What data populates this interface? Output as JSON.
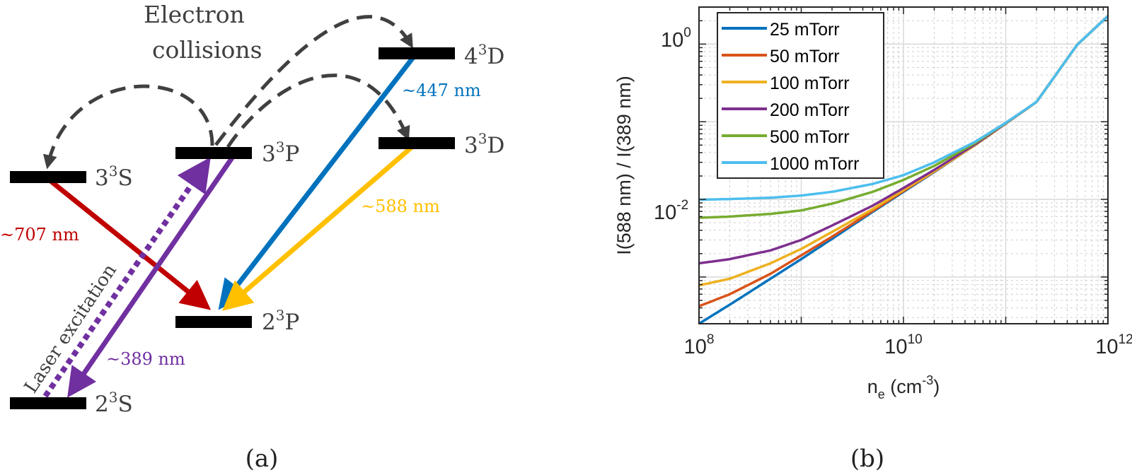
{
  "diagram": {
    "electron_collisions_line1": "Electron",
    "electron_collisions_line2": "collisions",
    "laser_label": "Laser excitation",
    "caption": "(a)",
    "levels": [
      {
        "id": "4D",
        "n": "4",
        "sup": "3",
        "l": "D"
      },
      {
        "id": "3D",
        "n": "3",
        "sup": "3",
        "l": "D"
      },
      {
        "id": "3P",
        "n": "3",
        "sup": "3",
        "l": "P"
      },
      {
        "id": "3S",
        "n": "3",
        "sup": "3",
        "l": "S"
      },
      {
        "id": "2P",
        "n": "2",
        "sup": "3",
        "l": "P"
      },
      {
        "id": "2S",
        "n": "2",
        "sup": "3",
        "l": "S"
      }
    ],
    "transitions": [
      {
        "label": "~447 nm",
        "color": "#0072BD"
      },
      {
        "label": "~588 nm",
        "color": "#FFC000"
      },
      {
        "label": "~707 nm",
        "color": "#C00000"
      },
      {
        "label": "~389 nm",
        "color": "#7030A0"
      }
    ]
  },
  "chart_data": {
    "type": "line",
    "caption": "(b)",
    "xlabel_base": "n",
    "xlabel_sub": "e",
    "xlabel_unit_pre": " (cm",
    "xlabel_unit_sup": "-3",
    "xlabel_unit_post": ")",
    "ylabel": "I(588 nm) / I(389 nm)",
    "xscale": "log",
    "yscale": "log",
    "xlim": [
      100000000.0,
      1000000000000.0
    ],
    "ylim": [
      0.00025,
      3
    ],
    "grid": true,
    "legend_position": "top-left",
    "x_ticks": [
      {
        "base": "10",
        "exp": "8",
        "value": 100000000.0
      },
      {
        "base": "10",
        "exp": "10",
        "value": 10000000000.0
      },
      {
        "base": "10",
        "exp": "12",
        "value": 1000000000000.0
      }
    ],
    "y_ticks": [
      {
        "base": "10",
        "exp": "-2",
        "value": 0.01
      },
      {
        "base": "10",
        "exp": "0",
        "value": 1
      }
    ],
    "x": [
      100000000.0,
      200000000.0,
      500000000.0,
      1000000000.0,
      2000000000.0,
      5000000000.0,
      10000000000.0,
      20000000000.0,
      50000000000.0,
      100000000000.0,
      200000000000.0,
      500000000000.0,
      1000000000000.0
    ],
    "series": [
      {
        "name": "25 mTorr",
        "color": "#0072BD",
        "values": [
          0.00025,
          0.00044,
          0.00095,
          0.0017,
          0.0031,
          0.0069,
          0.0125,
          0.0225,
          0.05,
          0.095,
          0.18,
          0.98,
          2.3
        ]
      },
      {
        "name": "50 mTorr",
        "color": "#D95319",
        "values": [
          0.00042,
          0.0006,
          0.0011,
          0.0019,
          0.0033,
          0.0071,
          0.0128,
          0.0228,
          0.05,
          0.095,
          0.18,
          0.98,
          2.3
        ]
      },
      {
        "name": "100 mTorr",
        "color": "#EDB120",
        "values": [
          0.00078,
          0.00095,
          0.0015,
          0.0023,
          0.0038,
          0.0075,
          0.0132,
          0.023,
          0.05,
          0.095,
          0.18,
          0.98,
          2.3
        ]
      },
      {
        "name": "200 mTorr",
        "color": "#7E2F8E",
        "values": [
          0.0015,
          0.0017,
          0.0022,
          0.003,
          0.0046,
          0.0083,
          0.014,
          0.024,
          0.051,
          0.095,
          0.18,
          0.98,
          2.3
        ]
      },
      {
        "name": "500 mTorr",
        "color": "#77AC30",
        "values": [
          0.0058,
          0.006,
          0.0065,
          0.0072,
          0.0088,
          0.0125,
          0.0178,
          0.027,
          0.053,
          0.096,
          0.18,
          0.98,
          2.3
        ]
      },
      {
        "name": "1000 mTorr",
        "color": "#4DBEEE",
        "values": [
          0.0099,
          0.0101,
          0.0105,
          0.0112,
          0.0125,
          0.0158,
          0.0205,
          0.03,
          0.055,
          0.097,
          0.18,
          0.98,
          2.3
        ]
      }
    ]
  }
}
